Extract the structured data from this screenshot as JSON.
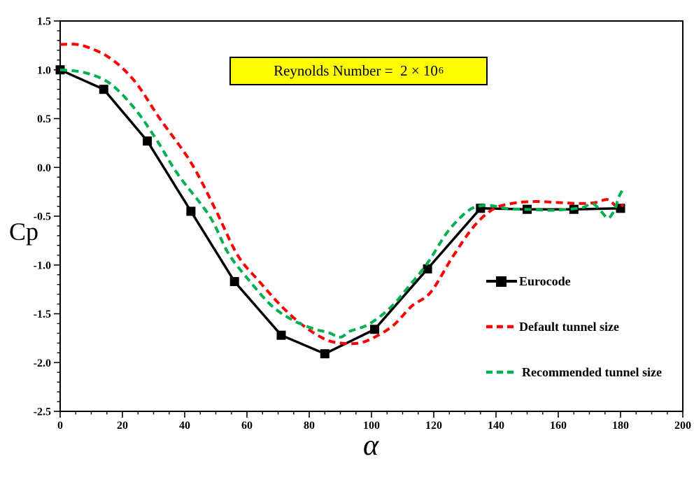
{
  "annotation": {
    "text": "Reynolds Number =  2 × 10",
    "exponent": "6",
    "background": "#ffff00",
    "border_color": "#000000"
  },
  "chart_data": {
    "type": "line",
    "title": "Reynolds Number = 2 × 10⁶",
    "xlabel": "α",
    "ylabel": "Cp",
    "xlim": [
      0,
      200
    ],
    "ylim": [
      -2.5,
      1.5
    ],
    "grid": false,
    "legend_position": "inside-right-middle",
    "x_major_ticks": [
      0,
      20,
      40,
      60,
      80,
      100,
      120,
      140,
      160,
      180,
      200
    ],
    "x_tick_labels": [
      "0",
      "20",
      "40",
      "60",
      "80",
      "100",
      "120",
      "140",
      "160",
      "180",
      "200"
    ],
    "x_minor_step": 5,
    "y_major_ticks": [
      1.5,
      1.0,
      0.5,
      0.0,
      -0.5,
      -1.0,
      -1.5,
      -2.0,
      -2.5
    ],
    "y_tick_labels": [
      "1.5",
      "1.0",
      "0.5",
      "0.0",
      "-0.5",
      "-1.0",
      "-1.5",
      "-2.0",
      "-2.5"
    ],
    "y_minor_step": 0.1,
    "series": [
      {
        "name": "Eurocode",
        "color": "#000000",
        "style": "solid",
        "marker": "square",
        "smooth": false,
        "line_width": 3.5,
        "points": [
          [
            0,
            1.0
          ],
          [
            14,
            0.8
          ],
          [
            28,
            0.27
          ],
          [
            42,
            -0.45
          ],
          [
            56,
            -1.17
          ],
          [
            71,
            -1.72
          ],
          [
            85,
            -1.91
          ],
          [
            101,
            -1.66
          ],
          [
            118,
            -1.04
          ],
          [
            135,
            -0.42
          ],
          [
            150,
            -0.43
          ],
          [
            165,
            -0.43
          ],
          [
            180,
            -0.42
          ]
        ]
      },
      {
        "name": "Default tunnel size",
        "color": "#ff0000",
        "style": "dashed",
        "marker": "none",
        "smooth": true,
        "line_width": 4,
        "points": [
          [
            0,
            1.26
          ],
          [
            7,
            1.25
          ],
          [
            16,
            1.12
          ],
          [
            24,
            0.88
          ],
          [
            32,
            0.5
          ],
          [
            42,
            0.05
          ],
          [
            50,
            -0.44
          ],
          [
            57,
            -0.9
          ],
          [
            64,
            -1.17
          ],
          [
            71,
            -1.42
          ],
          [
            78,
            -1.62
          ],
          [
            85,
            -1.76
          ],
          [
            90,
            -1.8
          ],
          [
            96,
            -1.8
          ],
          [
            101,
            -1.74
          ],
          [
            107,
            -1.62
          ],
          [
            113,
            -1.42
          ],
          [
            119,
            -1.28
          ],
          [
            126,
            -0.92
          ],
          [
            133,
            -0.6
          ],
          [
            139,
            -0.43
          ],
          [
            145,
            -0.37
          ],
          [
            152,
            -0.35
          ],
          [
            160,
            -0.36
          ],
          [
            167,
            -0.37
          ],
          [
            172,
            -0.36
          ],
          [
            176,
            -0.33
          ],
          [
            179,
            -0.41
          ],
          [
            181,
            -0.38
          ]
        ]
      },
      {
        "name": "Recommended tunnel size",
        "color": "#00b050",
        "style": "dashed",
        "marker": "none",
        "smooth": true,
        "line_width": 4,
        "points": [
          [
            0,
            1.0
          ],
          [
            8,
            0.97
          ],
          [
            16,
            0.86
          ],
          [
            24,
            0.6
          ],
          [
            31,
            0.28
          ],
          [
            38,
            -0.08
          ],
          [
            48,
            -0.5
          ],
          [
            54,
            -0.88
          ],
          [
            61,
            -1.17
          ],
          [
            68,
            -1.42
          ],
          [
            75,
            -1.57
          ],
          [
            82,
            -1.66
          ],
          [
            86,
            -1.69
          ],
          [
            90,
            -1.74
          ],
          [
            93,
            -1.68
          ],
          [
            99,
            -1.61
          ],
          [
            106,
            -1.44
          ],
          [
            112,
            -1.22
          ],
          [
            118,
            -0.98
          ],
          [
            124,
            -0.68
          ],
          [
            129,
            -0.5
          ],
          [
            133,
            -0.41
          ],
          [
            138,
            -0.39
          ],
          [
            143,
            -0.42
          ],
          [
            150,
            -0.43
          ],
          [
            157,
            -0.44
          ],
          [
            163,
            -0.43
          ],
          [
            168,
            -0.41
          ],
          [
            171,
            -0.37
          ],
          [
            174,
            -0.46
          ],
          [
            176,
            -0.52
          ],
          [
            178,
            -0.44
          ],
          [
            179.5,
            -0.3
          ],
          [
            180.5,
            -0.24
          ]
        ]
      }
    ]
  }
}
